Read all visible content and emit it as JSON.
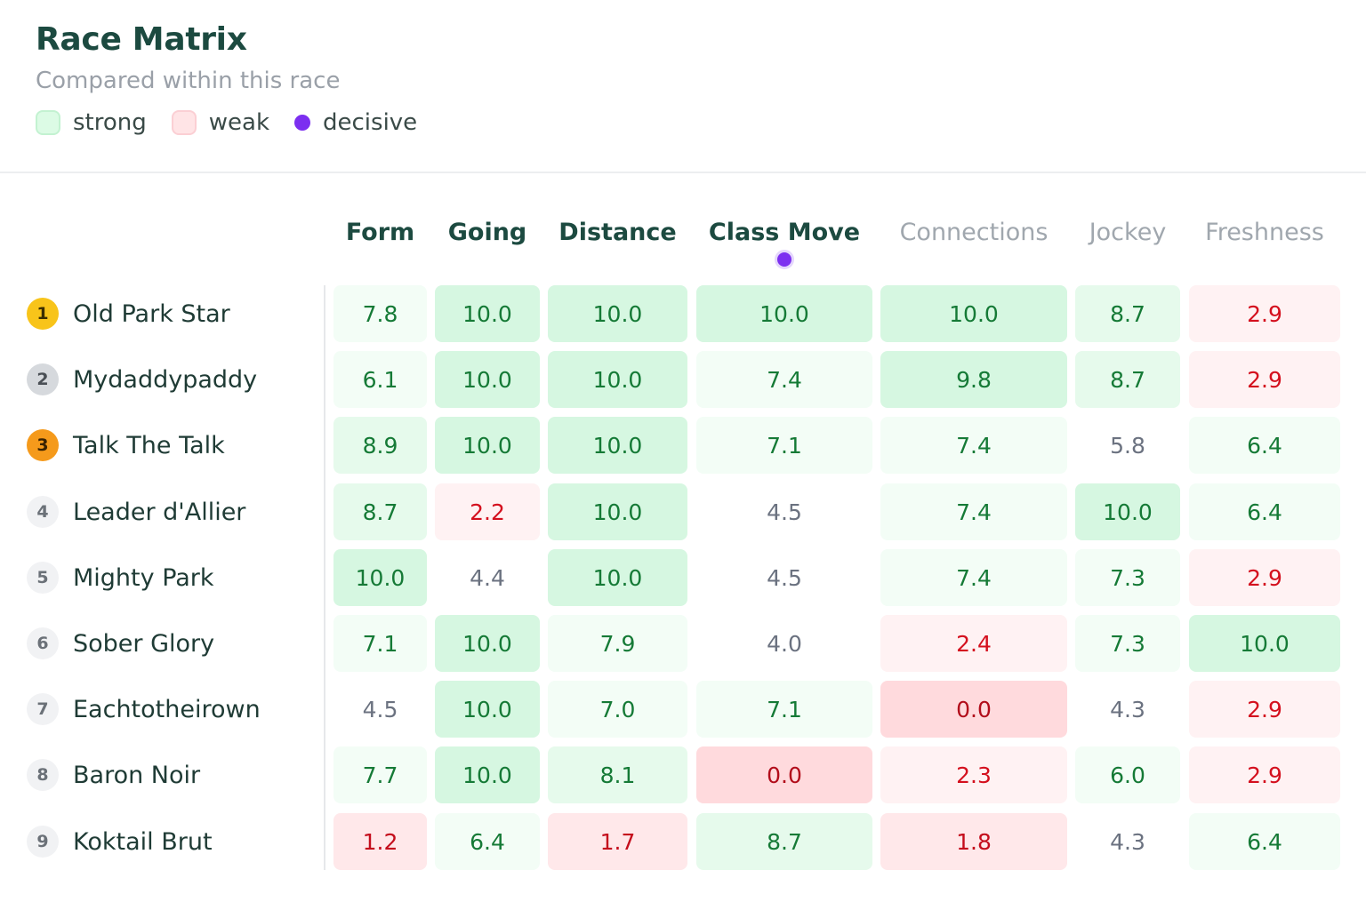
{
  "header": {
    "title": "Race Matrix",
    "subtitle": "Compared within this race",
    "legend": {
      "strong": "strong",
      "weak": "weak",
      "decisive": "decisive"
    }
  },
  "colors": {
    "strong": "#dcfbe5",
    "weak": "#ffe4e6",
    "decisive": "#7c2ff0",
    "title": "#1c4a40"
  },
  "columns": [
    {
      "label": "Form",
      "emphasis": "primary"
    },
    {
      "label": "Going",
      "emphasis": "primary"
    },
    {
      "label": "Distance",
      "emphasis": "primary"
    },
    {
      "label": "Class Move",
      "emphasis": "primary",
      "decisive": true
    },
    {
      "label": "Connections",
      "emphasis": "secondary"
    },
    {
      "label": "Jockey",
      "emphasis": "secondary"
    },
    {
      "label": "Freshness",
      "emphasis": "secondary"
    }
  ],
  "rows": [
    {
      "rank": "1",
      "name": "Old Park Star",
      "scores": [
        "7.8",
        "10.0",
        "10.0",
        "10.0",
        "10.0",
        "8.7",
        "2.9"
      ]
    },
    {
      "rank": "2",
      "name": "Mydaddypaddy",
      "scores": [
        "6.1",
        "10.0",
        "10.0",
        "7.4",
        "9.8",
        "8.7",
        "2.9"
      ]
    },
    {
      "rank": "3",
      "name": "Talk The Talk",
      "scores": [
        "8.9",
        "10.0",
        "10.0",
        "7.1",
        "7.4",
        "5.8",
        "6.4"
      ]
    },
    {
      "rank": "4",
      "name": "Leader d'Allier",
      "scores": [
        "8.7",
        "2.2",
        "10.0",
        "4.5",
        "7.4",
        "10.0",
        "6.4"
      ]
    },
    {
      "rank": "5",
      "name": "Mighty Park",
      "scores": [
        "10.0",
        "4.4",
        "10.0",
        "4.5",
        "7.4",
        "7.3",
        "2.9"
      ]
    },
    {
      "rank": "6",
      "name": "Sober Glory",
      "scores": [
        "7.1",
        "10.0",
        "7.9",
        "4.0",
        "2.4",
        "7.3",
        "10.0"
      ]
    },
    {
      "rank": "7",
      "name": "Eachtotheirown",
      "scores": [
        "4.5",
        "10.0",
        "7.0",
        "7.1",
        "0.0",
        "4.3",
        "2.9"
      ]
    },
    {
      "rank": "8",
      "name": "Baron Noir",
      "scores": [
        "7.7",
        "10.0",
        "8.1",
        "0.0",
        "2.3",
        "6.0",
        "2.9"
      ]
    },
    {
      "rank": "9",
      "name": "Koktail Brut",
      "scores": [
        "1.2",
        "6.4",
        "1.7",
        "8.7",
        "1.8",
        "4.3",
        "6.4"
      ]
    }
  ]
}
